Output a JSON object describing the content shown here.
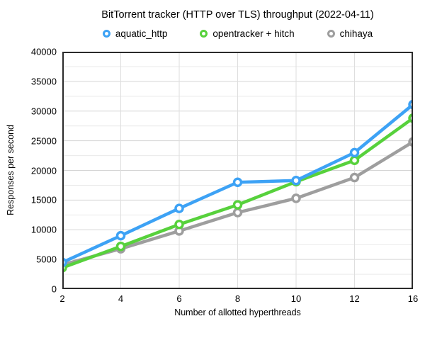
{
  "title": "BitTorrent tracker (HTTP over TLS) throughput (2022-04-11)",
  "chart_data": {
    "type": "line",
    "title": "BitTorrent tracker (HTTP over TLS) throughput (2022-04-11)",
    "xlabel": "Number of allotted hyperthreads",
    "ylabel": "Responses per second",
    "x_categories": [
      "2",
      "4",
      "6",
      "8",
      "10",
      "12",
      "16"
    ],
    "x_spacing": "equal",
    "ylim": [
      0,
      40000
    ],
    "y_major_step": 5000,
    "y_minor_step": 2500,
    "y_tick_labels": [
      "0",
      "5000",
      "10000",
      "15000",
      "20000",
      "25000",
      "30000",
      "35000",
      "40000"
    ],
    "grid": true,
    "legend_position": "top",
    "marker_style": "open-circle",
    "series": [
      {
        "name": "aquatic_http",
        "color": "#3DA2F5",
        "values": [
          4500,
          9000,
          13600,
          18000,
          18300,
          23000,
          31100
        ]
      },
      {
        "name": "opentracker + hitch",
        "color": "#57D13C",
        "values": [
          3600,
          7200,
          10900,
          14200,
          18100,
          21700,
          28800
        ]
      },
      {
        "name": "chihaya",
        "color": "#9E9E9E",
        "values": [
          4100,
          6800,
          9800,
          12900,
          15300,
          18800,
          24800
        ]
      }
    ],
    "colors": {
      "plot_border": "#2b2b2b",
      "grid_major": "#d5d5d5",
      "grid_minor": "#e9e9e9",
      "grid_vertical": "#dedede",
      "background": "#ffffff"
    }
  }
}
